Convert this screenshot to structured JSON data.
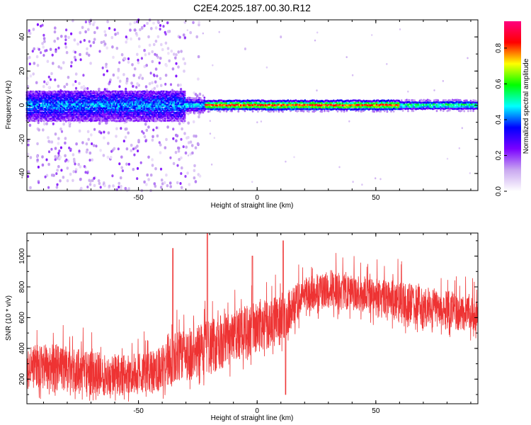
{
  "figure": {
    "title": "C2E4.2025.187.00.30.R12"
  },
  "chart_data": [
    {
      "type": "heatmap",
      "xlabel": "Height of straight line (km)",
      "ylabel": "Frequency (Hz)",
      "xlim": [
        -97,
        93
      ],
      "ylim": [
        -50,
        50
      ],
      "xticks": [
        -50,
        0,
        50
      ],
      "yticks": [
        -40,
        -20,
        0,
        20,
        40
      ],
      "colorbar": {
        "label": "Normalized spectral amplitude",
        "range": [
          0,
          0.95
        ],
        "ticks": [
          "0.0",
          "0.2",
          "0.4",
          "0.6",
          "0.8"
        ],
        "colormap": [
          "#ffffff",
          "#c9a8f0",
          "#7a00ff",
          "#0000ff",
          "#00ffff",
          "#00ff00",
          "#ffff00",
          "#ff0000",
          "#ff007f"
        ]
      },
      "description_points": {
        "band_center_hz": 0,
        "peak_x_range_km": [
          -20,
          60
        ],
        "noisy_region_x_km": [
          -97,
          -30
        ],
        "isolated_specks": [
          [
            -5,
            33
          ],
          [
            10,
            40
          ]
        ]
      }
    },
    {
      "type": "line",
      "xlabel": "Height of straight line (km)",
      "ylabel": "SNR (10 * v/v)",
      "xlim": [
        -97,
        93
      ],
      "ylim": [
        40,
        1150
      ],
      "xticks": [
        -50,
        0,
        50
      ],
      "yticks": [
        200,
        400,
        600,
        800,
        1000
      ],
      "color": "#ee3333",
      "envelope": {
        "x": [
          -97,
          -85,
          -70,
          -55,
          -45,
          -40,
          -35,
          -30,
          -25,
          -20,
          -15,
          -10,
          -5,
          0,
          5,
          10,
          15,
          20,
          30,
          40,
          50,
          60,
          70,
          80,
          93
        ],
        "low": [
          120,
          110,
          90,
          90,
          100,
          120,
          160,
          180,
          200,
          230,
          250,
          280,
          330,
          360,
          400,
          420,
          520,
          640,
          650,
          650,
          600,
          560,
          540,
          520,
          500
        ],
        "high": [
          420,
          430,
          380,
          360,
          380,
          420,
          500,
          520,
          560,
          600,
          620,
          640,
          680,
          700,
          720,
          760,
          800,
          860,
          900,
          880,
          860,
          840,
          800,
          780,
          720
        ]
      },
      "spikes": [
        [
          -35.5,
          1050
        ],
        [
          -21,
          1150
        ],
        [
          -2,
          1000
        ],
        [
          11,
          1100
        ],
        [
          12,
          100
        ]
      ]
    }
  ]
}
